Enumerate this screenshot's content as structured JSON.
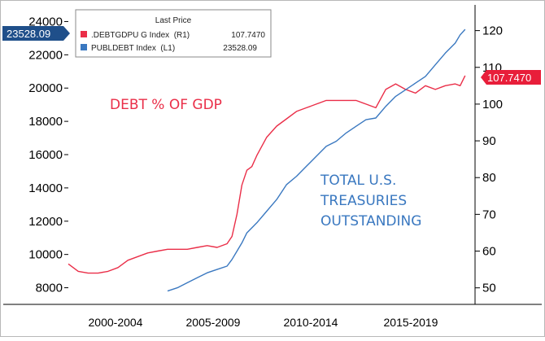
{
  "chart_data": {
    "type": "line",
    "title": "",
    "xlabel": "",
    "x_tick_labels": [
      "2000-2004",
      "2005-2009",
      "2010-2014",
      "2015-2019"
    ],
    "xlim": [
      2000.0,
      2020.5
    ],
    "left_axis": {
      "ticks": [
        8000,
        10000,
        12000,
        14000,
        16000,
        18000,
        20000,
        22000,
        24000
      ],
      "ylim": [
        7000,
        25000
      ]
    },
    "right_axis": {
      "ticks": [
        50,
        60,
        70,
        80,
        90,
        100,
        110,
        120
      ],
      "ylim": [
        45.5,
        127
      ]
    },
    "legend": {
      "title": "Last Price",
      "placement": "top-left",
      "entries": [
        {
          "label": ".DEBTGDPU G Index  (R1)",
          "value": "107.7470",
          "color": "#ea2e48"
        },
        {
          "label": "PUBLDEBT Index  (L1)",
          "value": "23528.09",
          "color": "#3a78c0"
        }
      ]
    },
    "last_price_left": "23528.09",
    "last_price_right": "107.7470",
    "annotations": {
      "debt_gdp": "DEBT % OF GDP",
      "treasuries_1": "TOTAL U.S.",
      "treasuries_2": "TREASURIES",
      "treasuries_3": "OUTSTANDING"
    },
    "series": [
      {
        "name": ".DEBTGDPU G Index",
        "axis": "right",
        "color": "#ea2e48",
        "x": [
          2000.0,
          2000.5,
          2001.0,
          2001.5,
          2002.0,
          2002.5,
          2003.0,
          2003.5,
          2004.0,
          2004.5,
          2005.0,
          2005.5,
          2006.0,
          2006.5,
          2007.0,
          2007.5,
          2008.0,
          2008.25,
          2008.5,
          2008.75,
          2009.0,
          2009.25,
          2009.5,
          2010.0,
          2010.5,
          2011.0,
          2011.5,
          2012.0,
          2012.5,
          2013.0,
          2013.5,
          2014.0,
          2014.5,
          2015.0,
          2015.5,
          2016.0,
          2016.5,
          2017.0,
          2017.5,
          2018.0,
          2018.5,
          2019.0,
          2019.5,
          2019.75,
          2020.0
        ],
        "y": [
          56.5,
          54.5,
          54.0,
          54.0,
          54.5,
          55.5,
          57.5,
          58.5,
          59.5,
          60.0,
          60.5,
          60.5,
          60.5,
          61.0,
          61.5,
          61.0,
          62.0,
          64.0,
          70.0,
          78.0,
          82.0,
          83.0,
          86.0,
          91.0,
          94.0,
          96.0,
          98.0,
          99.0,
          100.0,
          101.0,
          101.0,
          101.0,
          101.0,
          100.0,
          99.0,
          104.0,
          105.5,
          104.0,
          103.0,
          105.0,
          104.0,
          105.0,
          105.5,
          105.0,
          107.747
        ]
      },
      {
        "name": "PUBLDEBT Index",
        "axis": "left",
        "color": "#3a78c0",
        "x": [
          2005.0,
          2005.5,
          2006.0,
          2006.5,
          2007.0,
          2007.5,
          2008.0,
          2008.25,
          2008.5,
          2008.75,
          2009.0,
          2009.5,
          2010.0,
          2010.5,
          2011.0,
          2011.5,
          2012.0,
          2012.5,
          2013.0,
          2013.5,
          2014.0,
          2014.5,
          2015.0,
          2015.5,
          2016.0,
          2016.5,
          2017.0,
          2017.5,
          2018.0,
          2018.5,
          2019.0,
          2019.5,
          2019.75,
          2020.0
        ],
        "y": [
          7800,
          8000,
          8300,
          8600,
          8900,
          9100,
          9300,
          9700,
          10200,
          10700,
          11300,
          11900,
          12600,
          13300,
          14200,
          14700,
          15300,
          15900,
          16500,
          16800,
          17300,
          17700,
          18100,
          18200,
          18900,
          19500,
          19900,
          20300,
          20700,
          21400,
          22100,
          22700,
          23200,
          23528.09
        ]
      }
    ]
  }
}
